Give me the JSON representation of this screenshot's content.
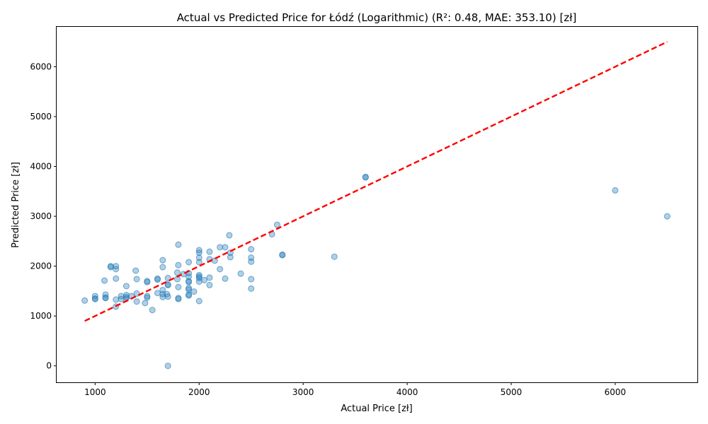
{
  "chart_data": {
    "type": "scatter",
    "title": "Actual vs Predicted Price for Łódź (Logarithmic) (R²: 0.48, MAE: 353.10) [zł]",
    "xlabel": "Actual Price [zł]",
    "ylabel": "Predicted Price [zł]",
    "xlim": [
      630,
      6790
    ],
    "ylim": [
      -330,
      6800
    ],
    "xticks": [
      1000,
      2000,
      3000,
      4000,
      5000,
      6000
    ],
    "yticks": [
      0,
      1000,
      2000,
      3000,
      4000,
      5000,
      6000
    ],
    "grid": false,
    "point_color": "#1f77b4",
    "point_alpha": 0.35,
    "line_color": "#ff0000",
    "reference_line": {
      "x": [
        900,
        6500
      ],
      "y": [
        900,
        6500
      ]
    },
    "points": [
      [
        900,
        1310
      ],
      [
        1000,
        1350
      ],
      [
        1000,
        1400
      ],
      [
        1000,
        1340
      ],
      [
        1090,
        1710
      ],
      [
        1100,
        1430
      ],
      [
        1100,
        1370
      ],
      [
        1100,
        1360
      ],
      [
        1150,
        2000
      ],
      [
        1150,
        1980
      ],
      [
        1200,
        2000
      ],
      [
        1200,
        1940
      ],
      [
        1200,
        1750
      ],
      [
        1200,
        1330
      ],
      [
        1200,
        1190
      ],
      [
        1250,
        1400
      ],
      [
        1250,
        1340
      ],
      [
        1300,
        1600
      ],
      [
        1300,
        1420
      ],
      [
        1300,
        1380
      ],
      [
        1300,
        1350
      ],
      [
        1350,
        1400
      ],
      [
        1390,
        1910
      ],
      [
        1400,
        1740
      ],
      [
        1400,
        1450
      ],
      [
        1400,
        1290
      ],
      [
        1480,
        1260
      ],
      [
        1500,
        1700
      ],
      [
        1500,
        1680
      ],
      [
        1500,
        1400
      ],
      [
        1500,
        1370
      ],
      [
        1550,
        1120
      ],
      [
        1600,
        1750
      ],
      [
        1600,
        1730
      ],
      [
        1600,
        1460
      ],
      [
        1650,
        2120
      ],
      [
        1650,
        1980
      ],
      [
        1650,
        1520
      ],
      [
        1650,
        1440
      ],
      [
        1650,
        1380
      ],
      [
        1690,
        1440
      ],
      [
        1700,
        1760
      ],
      [
        1700,
        1630
      ],
      [
        1700,
        1620
      ],
      [
        1700,
        1390
      ],
      [
        1700,
        0
      ],
      [
        1790,
        1870
      ],
      [
        1790,
        1740
      ],
      [
        1800,
        2430
      ],
      [
        1800,
        2020
      ],
      [
        1800,
        1580
      ],
      [
        1800,
        1360
      ],
      [
        1800,
        1340
      ],
      [
        1850,
        1840
      ],
      [
        1900,
        2080
      ],
      [
        1900,
        1860
      ],
      [
        1900,
        1790
      ],
      [
        1900,
        1700
      ],
      [
        1900,
        1680
      ],
      [
        1900,
        1560
      ],
      [
        1900,
        1530
      ],
      [
        1900,
        1430
      ],
      [
        1900,
        1410
      ],
      [
        1950,
        1490
      ],
      [
        2000,
        2320
      ],
      [
        2000,
        2270
      ],
      [
        2000,
        2170
      ],
      [
        2000,
        2080
      ],
      [
        2000,
        1820
      ],
      [
        2000,
        1790
      ],
      [
        2000,
        1760
      ],
      [
        2000,
        1690
      ],
      [
        2000,
        1300
      ],
      [
        2050,
        1720
      ],
      [
        2100,
        2290
      ],
      [
        2100,
        2140
      ],
      [
        2100,
        1770
      ],
      [
        2100,
        1620
      ],
      [
        2150,
        2110
      ],
      [
        2200,
        2380
      ],
      [
        2200,
        1940
      ],
      [
        2250,
        2380
      ],
      [
        2250,
        1750
      ],
      [
        2290,
        2620
      ],
      [
        2300,
        2270
      ],
      [
        2300,
        2180
      ],
      [
        2400,
        1850
      ],
      [
        2500,
        2340
      ],
      [
        2500,
        2170
      ],
      [
        2500,
        2090
      ],
      [
        2500,
        1740
      ],
      [
        2500,
        1550
      ],
      [
        2700,
        2640
      ],
      [
        2750,
        2830
      ],
      [
        2800,
        2230
      ],
      [
        2800,
        2220
      ],
      [
        3300,
        2190
      ],
      [
        3600,
        3780
      ],
      [
        3600,
        3790
      ],
      [
        6000,
        3520
      ],
      [
        6500,
        3000
      ]
    ]
  }
}
